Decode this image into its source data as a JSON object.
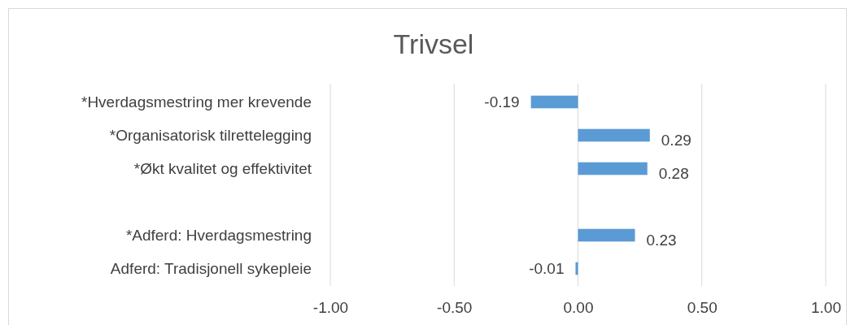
{
  "chart_data": {
    "type": "bar",
    "orientation": "horizontal",
    "title": "Trivsel",
    "categories": [
      "*Hverdagsmestring mer krevende",
      "*Organisatorisk tilrettelegging",
      "*Økt kvalitet og effektivitet",
      null,
      "*Adferd: Hverdagsmestring",
      "Adferd: Tradisjonell sykepleie"
    ],
    "values": [
      -0.19,
      0.29,
      0.28,
      null,
      0.23,
      -0.01
    ],
    "color": "#5b9bd5",
    "xlim": [
      -1,
      1
    ],
    "xticks": [
      {
        "value": -1,
        "label": "-1.00"
      },
      {
        "value": -0.5,
        "label": "-0.50"
      },
      {
        "value": 0,
        "label": "0.00"
      },
      {
        "value": 0.5,
        "label": "0.50"
      },
      {
        "value": 1,
        "label": "1.00"
      }
    ],
    "grid": "x",
    "data_labels": true
  }
}
